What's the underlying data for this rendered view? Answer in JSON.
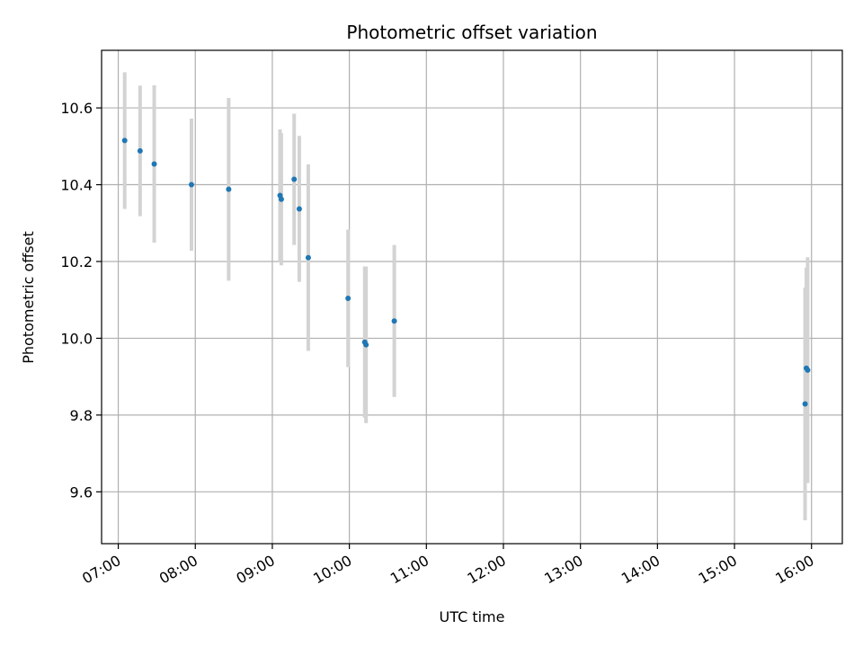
{
  "chart_data": {
    "type": "scatter",
    "title": "Photometric offset variation",
    "xlabel": "UTC time",
    "ylabel": "Photometric offset",
    "x_ticks": [
      "07:00",
      "08:00",
      "09:00",
      "10:00",
      "11:00",
      "12:00",
      "13:00",
      "14:00",
      "15:00",
      "16:00"
    ],
    "y_ticks": [
      "9.6",
      "9.8",
      "10.0",
      "10.2",
      "10.4",
      "10.6"
    ],
    "xlim": [
      "06:47",
      "16:24"
    ],
    "ylim": [
      9.465,
      10.75
    ],
    "grid": true,
    "colors": {
      "point": "#1f77b4",
      "errorbar": "#d3d3d3",
      "grid": "#b0b0b0"
    },
    "points": [
      {
        "x": "07:05",
        "y": 10.515,
        "err": 0.178
      },
      {
        "x": "07:17",
        "y": 10.488,
        "err": 0.17
      },
      {
        "x": "07:28",
        "y": 10.454,
        "err": 0.205
      },
      {
        "x": "07:57",
        "y": 10.4,
        "err": 0.172
      },
      {
        "x": "08:26",
        "y": 10.388,
        "err": 0.238
      },
      {
        "x": "09:06",
        "y": 10.372,
        "err": 0.172
      },
      {
        "x": "09:07",
        "y": 10.362,
        "err": 0.172
      },
      {
        "x": "09:17",
        "y": 10.414,
        "err": 0.171
      },
      {
        "x": "09:21",
        "y": 10.337,
        "err": 0.19
      },
      {
        "x": "09:28",
        "y": 10.21,
        "err": 0.243
      },
      {
        "x": "09:59",
        "y": 10.104,
        "err": 0.179
      },
      {
        "x": "10:12",
        "y": 9.99,
        "err": 0.197
      },
      {
        "x": "10:13",
        "y": 9.983,
        "err": 0.204
      },
      {
        "x": "10:35",
        "y": 10.045,
        "err": 0.198
      },
      {
        "x": "15:55",
        "y": 9.829,
        "err": 0.303
      },
      {
        "x": "15:56",
        "y": 9.922,
        "err": 0.262
      },
      {
        "x": "15:57",
        "y": 9.917,
        "err": 0.294
      }
    ]
  }
}
